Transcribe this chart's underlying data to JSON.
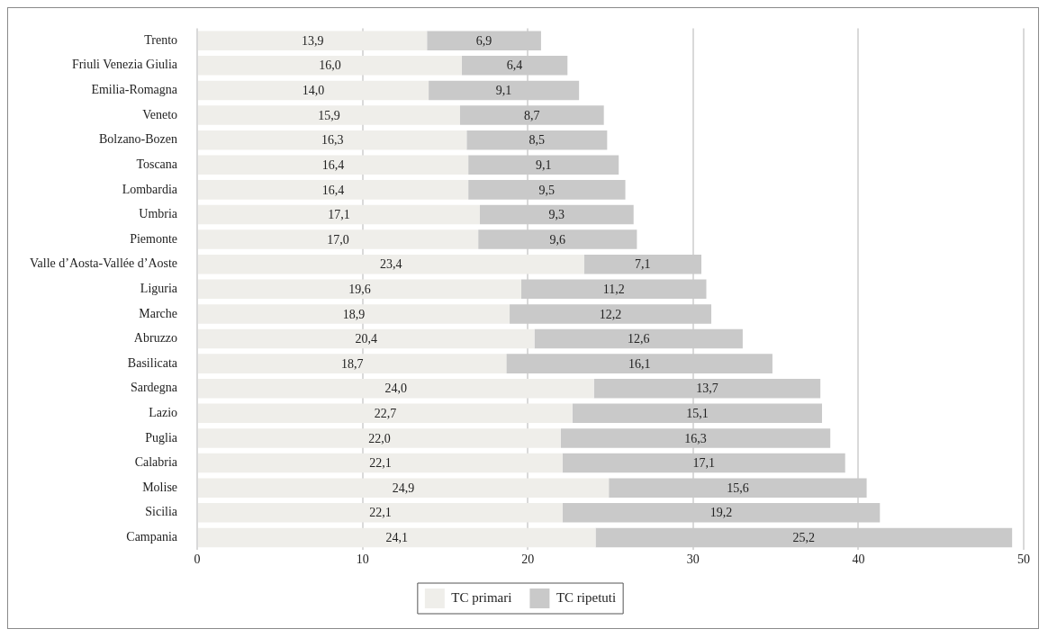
{
  "chart_data": {
    "type": "bar",
    "orientation": "horizontal",
    "stacked": true,
    "categories": [
      "Trento",
      "Friuli Venezia Giulia",
      "Emilia-Romagna",
      "Veneto",
      "Bolzano-Bozen",
      "Toscana",
      "Lombardia",
      "Umbria",
      "Piemonte",
      "Valle d’Aosta-Vallée d’Aoste",
      "Liguria",
      "Marche",
      "Abruzzo",
      "Basilicata",
      "Sardegna",
      "Lazio",
      "Puglia",
      "Calabria",
      "Molise",
      "Sicilia",
      "Campania"
    ],
    "series": [
      {
        "name": "TC primari",
        "color": "#efeeea",
        "values": [
          13.9,
          16.0,
          14.0,
          15.9,
          16.3,
          16.4,
          16.4,
          17.1,
          17.0,
          23.4,
          19.6,
          18.9,
          20.4,
          18.7,
          24.0,
          22.7,
          22.0,
          22.1,
          24.9,
          22.1,
          24.1
        ],
        "value_labels": [
          "13,9",
          "16,0",
          "14,0",
          "15,9",
          "16,3",
          "16,4",
          "16,4",
          "17,1",
          "17,0",
          "23,4",
          "19,6",
          "18,9",
          "20,4",
          "18,7",
          "24,0",
          "22,7",
          "22,0",
          "22,1",
          "24,9",
          "22,1",
          "24,1"
        ]
      },
      {
        "name": "TC ripetuti",
        "color": "#c9c9c9",
        "values": [
          6.9,
          6.4,
          9.1,
          8.7,
          8.5,
          9.1,
          9.5,
          9.3,
          9.6,
          7.1,
          11.2,
          12.2,
          12.6,
          16.1,
          13.7,
          15.1,
          16.3,
          17.1,
          15.6,
          19.2,
          25.2
        ],
        "value_labels": [
          "6,9",
          "6,4",
          "9,1",
          "8,7",
          "8,5",
          "9,1",
          "9,5",
          "9,3",
          "9,6",
          "7,1",
          "11,2",
          "12,2",
          "12,6",
          "16,1",
          "13,7",
          "15,1",
          "16,3",
          "17,1",
          "15,6",
          "19,2",
          "25,2"
        ]
      }
    ],
    "xlim": [
      0,
      50
    ],
    "xticks": [
      0,
      10,
      20,
      30,
      40,
      50
    ],
    "grid": "x",
    "legend": "bottom"
  }
}
